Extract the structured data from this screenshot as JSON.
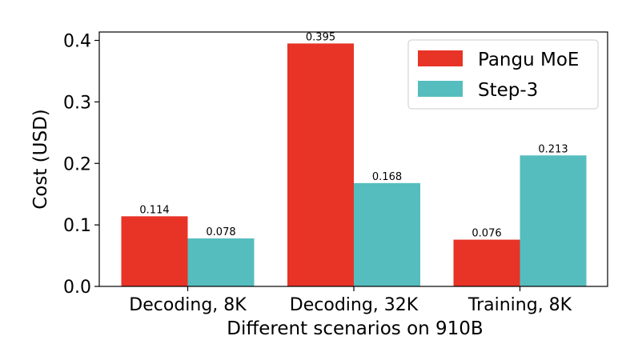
{
  "chart_data": {
    "type": "bar",
    "categories": [
      "Decoding, 8K",
      "Decoding, 32K",
      "Training, 8K"
    ],
    "series": [
      {
        "name": "Pangu MoE",
        "values": [
          0.114,
          0.395,
          0.076
        ],
        "color": "#e83327"
      },
      {
        "name": "Step-3",
        "values": [
          0.078,
          0.168,
          0.213
        ],
        "color": "#56bdbe"
      }
    ],
    "data_labels": [
      [
        "0.114",
        "0.395",
        "0.076"
      ],
      [
        "0.078",
        "0.168",
        "0.213"
      ]
    ],
    "xlabel": "Different scenarios on 910B",
    "ylabel": "Cost (USD)",
    "ylim": [
      0,
      0.4
    ],
    "yticks": [
      0.0,
      0.1,
      0.2,
      0.3,
      0.4
    ],
    "ytick_labels": [
      "0.0",
      "0.1",
      "0.2",
      "0.3",
      "0.4"
    ],
    "grid": false,
    "legend_position": "top-right"
  }
}
